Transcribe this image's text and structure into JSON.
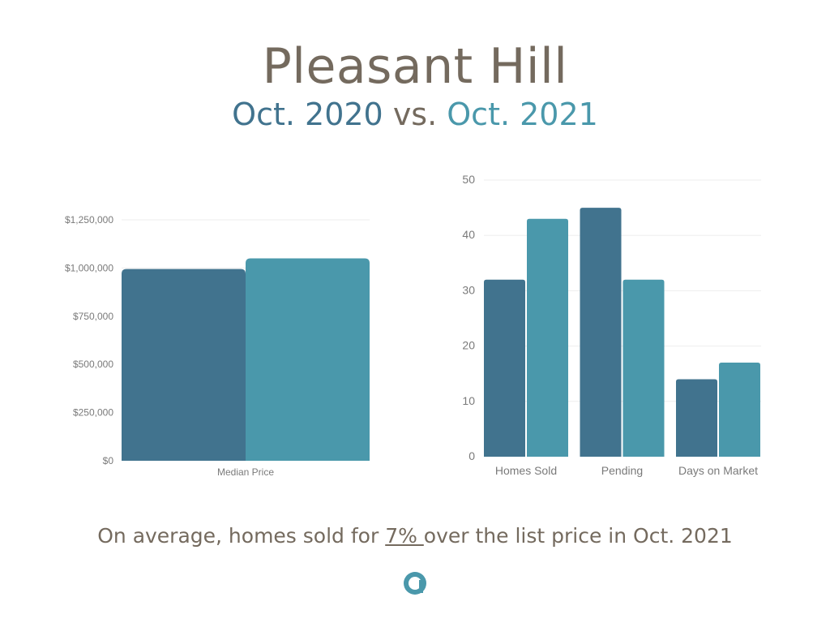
{
  "header": {
    "title": "Pleasant Hill",
    "subtitle_part1": "Oct. 2020",
    "subtitle_vs": " vs. ",
    "subtitle_part2": "Oct. 2021"
  },
  "colors": {
    "oct_2020": "#41738e",
    "oct_2021": "#4a98ab",
    "title_text": "#746a5e",
    "grid": "#eeeeee"
  },
  "chart_data": [
    {
      "type": "bar",
      "categories": [
        "Median Price"
      ],
      "series": [
        {
          "values": [
            995000
          ],
          "color": "#41738e"
        },
        {
          "values": [
            1050000
          ],
          "color": "#4a98ab"
        }
      ],
      "yticks": [
        "$0",
        "$250,000",
        "$500,000",
        "$750,000",
        "$1,000,000",
        "$1,250,000"
      ],
      "ylim": [
        0,
        1250000
      ],
      "grid": true
    },
    {
      "type": "bar",
      "categories": [
        "Homes Sold",
        "Pending",
        "Days on Market"
      ],
      "series": [
        {
          "values": [
            32,
            45,
            14
          ],
          "color": "#41738e"
        },
        {
          "values": [
            43,
            32,
            17
          ],
          "color": "#4a98ab"
        }
      ],
      "yticks": [
        "0",
        "10",
        "20",
        "30",
        "40",
        "50"
      ],
      "ylim": [
        0,
        50
      ],
      "grid": true
    }
  ],
  "footer": {
    "text_before": "On average, homes sold for ",
    "highlight": "7% ",
    "text_after": "over the list price in Oct. 2021"
  },
  "logo": {
    "icon": "brand-logo-icon"
  }
}
